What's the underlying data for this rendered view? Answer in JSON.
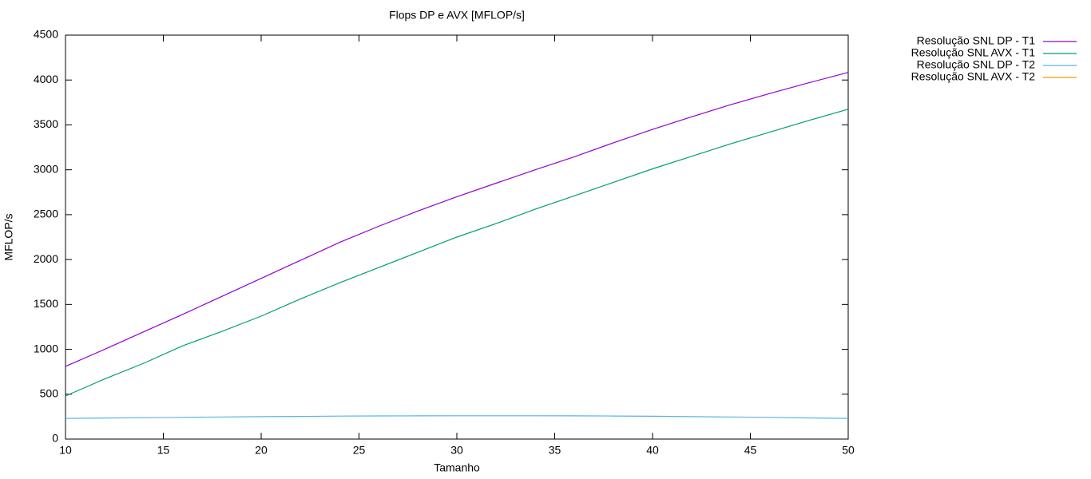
{
  "chart_data": {
    "type": "line",
    "title": "Flops DP e AVX [MFLOP/s]",
    "xlabel": "Tamanho",
    "ylabel": "MFLOP/s",
    "x": [
      10,
      12,
      14,
      16,
      18,
      20,
      22,
      24,
      26,
      28,
      30,
      32,
      34,
      36,
      38,
      40,
      42,
      44,
      46,
      48,
      50
    ],
    "series": [
      {
        "name": "Resolução SNL DP - T1",
        "color": "#9400d3",
        "values": [
          810,
          1000,
          1195,
          1390,
          1590,
          1790,
          1990,
          2190,
          2370,
          2540,
          2700,
          2850,
          3000,
          3145,
          3300,
          3450,
          3590,
          3725,
          3850,
          3970,
          4085
        ]
      },
      {
        "name": "Resolução SNL AVX - T1",
        "color": "#009e73",
        "values": [
          480,
          670,
          845,
          1040,
          1200,
          1370,
          1560,
          1740,
          1910,
          2080,
          2250,
          2400,
          2560,
          2710,
          2860,
          3010,
          3150,
          3290,
          3420,
          3550,
          3675
        ]
      },
      {
        "name": "Resolução SNL DP - T2",
        "color": "#56b4e9",
        "values": [
          230,
          235,
          238,
          242,
          246,
          250,
          253,
          256,
          258,
          259,
          260,
          260,
          260,
          259,
          257,
          254,
          250,
          246,
          242,
          236,
          230
        ]
      },
      {
        "name": "Resolução SNL AVX - T2",
        "color": "#e69f00",
        "values": [
          null,
          null,
          null,
          null,
          null,
          null,
          null,
          null,
          null,
          null,
          null,
          null,
          null,
          null,
          null,
          null,
          null,
          null,
          null,
          null,
          null
        ]
      }
    ],
    "xlim": [
      10,
      50
    ],
    "xticks": [
      10,
      15,
      20,
      25,
      30,
      35,
      40,
      45,
      50
    ],
    "ylim": [
      0,
      4500
    ],
    "yticks": [
      0,
      500,
      1000,
      1500,
      2000,
      2500,
      3000,
      3500,
      4000,
      4500
    ],
    "grid": false,
    "legend": "outside-top-right"
  }
}
